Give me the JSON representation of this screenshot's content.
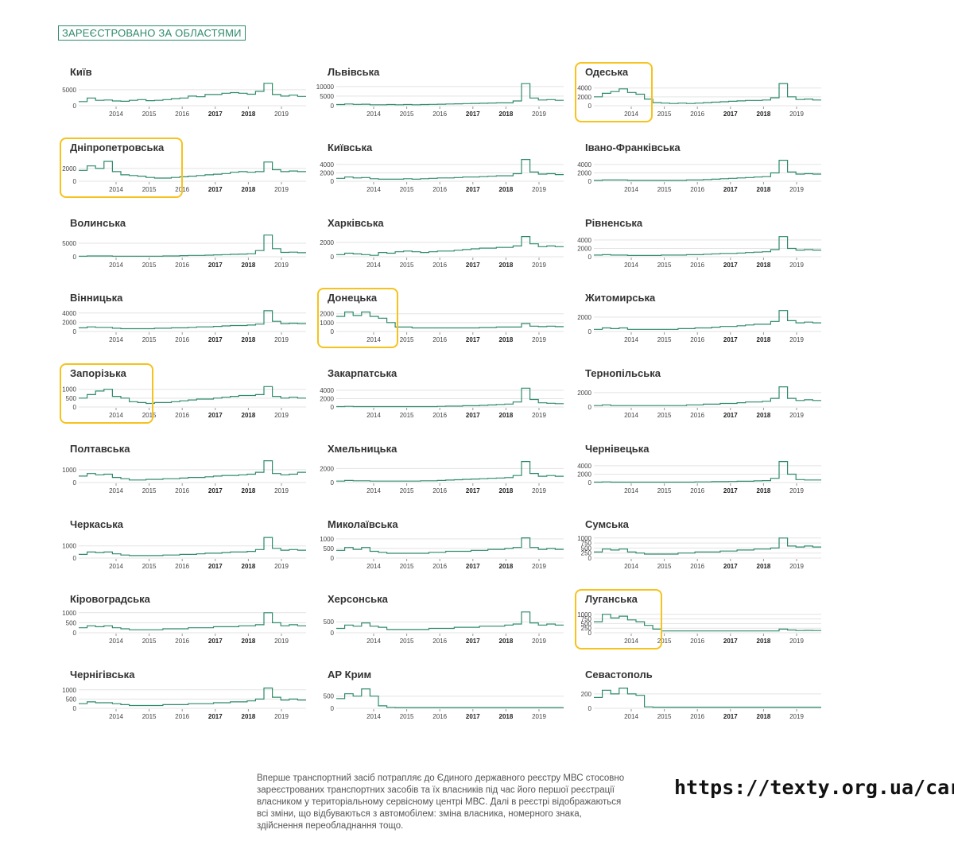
{
  "header": {
    "title": "ЗАРЕЄСТРОВАНО ЗА ОБЛАСТЯМИ"
  },
  "note": "Вперше транспортний засіб потрапляє до Єдиного державного реєстру МВС стосовно зареєстрованих транспортних засобів та їх власників під час його першої реєстрації власником у територіальному сервісному центрі МВС. Далі в реєстрі відображаються всі зміни, що відбуваються з автомобілем: зміна власника, номерного знака, здійснення переобладнання тощо.",
  "url": "https://texty.org.ua/cars/",
  "colors": {
    "line": "#2e8b6a",
    "accent": "#2e8b6a",
    "highlight": "#f6c21c",
    "grid": "#e3e3e3"
  },
  "chart_data": {
    "type": "line",
    "title": "ЗАРЕЄСТРОВАНО ЗА ОБЛАСТЯМИ",
    "x_ticks": [
      "2014",
      "2015",
      "2016",
      "2017",
      "2018",
      "2019"
    ],
    "x_ticks_bold": [
      "2017",
      "2018"
    ],
    "x_range": [
      "2013-01",
      "2019-12"
    ],
    "charts": [
      {
        "name": "Київ",
        "yticks": [
          0,
          5000
        ],
        "ymax": 7200,
        "highlight": false,
        "v": [
          1300,
          2400,
          1700,
          1800,
          1500,
          1400,
          1700,
          1900,
          1600,
          1700,
          1900,
          2200,
          2400,
          3000,
          2800,
          3500,
          3500,
          3900,
          4100,
          3900,
          3600,
          4500,
          7000,
          3500,
          3000,
          3300,
          2900
        ]
      },
      {
        "name": "Львівська",
        "yticks": [
          0,
          5000,
          10000
        ],
        "ymax": 12000,
        "highlight": false,
        "v": [
          600,
          900,
          700,
          800,
          500,
          500,
          600,
          500,
          600,
          500,
          600,
          700,
          800,
          900,
          1000,
          1100,
          1200,
          1300,
          1400,
          1500,
          1500,
          2500,
          11500,
          4000,
          3000,
          3200,
          2800
        ]
      },
      {
        "name": "Одеська",
        "yticks": [
          0,
          2000,
          4000
        ],
        "ymax": 5200,
        "highlight": true,
        "v": [
          2000,
          2800,
          3200,
          3800,
          3000,
          2600,
          1500,
          700,
          600,
          500,
          600,
          500,
          600,
          700,
          800,
          900,
          1000,
          1100,
          1200,
          1200,
          1300,
          1800,
          5000,
          2000,
          1400,
          1500,
          1300
        ]
      },
      {
        "name": "Дніпропетровська",
        "yticks": [
          0,
          2000
        ],
        "ymax": 3600,
        "highlight": true,
        "v": [
          1700,
          2400,
          2000,
          3100,
          1500,
          1000,
          900,
          800,
          600,
          500,
          500,
          600,
          700,
          800,
          900,
          1000,
          1100,
          1200,
          1400,
          1500,
          1400,
          1500,
          3000,
          1800,
          1500,
          1600,
          1500
        ]
      },
      {
        "name": "Київська",
        "yticks": [
          0,
          2000,
          4000
        ],
        "ymax": 5500,
        "highlight": false,
        "v": [
          700,
          1000,
          800,
          900,
          600,
          500,
          500,
          500,
          600,
          500,
          600,
          700,
          800,
          800,
          900,
          1000,
          1000,
          1100,
          1200,
          1300,
          1300,
          1800,
          5200,
          2200,
          1700,
          1800,
          1600
        ]
      },
      {
        "name": "Івано-Франківська",
        "yticks": [
          0,
          2000,
          4000
        ],
        "ymax": 5500,
        "highlight": false,
        "v": [
          200,
          300,
          300,
          300,
          200,
          200,
          200,
          200,
          200,
          200,
          200,
          300,
          300,
          400,
          500,
          600,
          700,
          800,
          900,
          1000,
          1100,
          2000,
          5000,
          2200,
          1700,
          1800,
          1700
        ]
      },
      {
        "name": "Волинська",
        "yticks": [
          0,
          5000
        ],
        "ymax": 8500,
        "highlight": false,
        "v": [
          200,
          300,
          300,
          300,
          200,
          200,
          200,
          200,
          200,
          200,
          300,
          300,
          400,
          500,
          500,
          600,
          700,
          800,
          900,
          1000,
          1100,
          2300,
          8000,
          3000,
          1600,
          1700,
          1500
        ]
      },
      {
        "name": "Харківська",
        "yticks": [
          0,
          2000
        ],
        "ymax": 3200,
        "highlight": false,
        "v": [
          300,
          500,
          400,
          300,
          200,
          600,
          500,
          700,
          800,
          700,
          600,
          700,
          800,
          800,
          900,
          1000,
          1100,
          1200,
          1200,
          1300,
          1300,
          1500,
          2800,
          1800,
          1400,
          1500,
          1400
        ]
      },
      {
        "name": "Рівненська",
        "yticks": [
          0,
          2000,
          4000
        ],
        "ymax": 5500,
        "highlight": false,
        "v": [
          400,
          500,
          400,
          400,
          300,
          300,
          300,
          300,
          400,
          400,
          400,
          500,
          500,
          600,
          700,
          800,
          800,
          900,
          1000,
          1100,
          1200,
          1700,
          4800,
          2000,
          1600,
          1700,
          1600
        ]
      },
      {
        "name": "Вінницька",
        "yticks": [
          0,
          2000,
          4000
        ],
        "ymax": 5000,
        "highlight": false,
        "v": [
          800,
          1000,
          900,
          900,
          700,
          600,
          600,
          600,
          600,
          700,
          700,
          800,
          800,
          900,
          1000,
          1000,
          1100,
          1200,
          1300,
          1300,
          1400,
          1600,
          4500,
          2200,
          1700,
          1800,
          1700
        ]
      },
      {
        "name": "Донецька",
        "yticks": [
          0,
          1000,
          2000
        ],
        "ymax": 2600,
        "highlight": true,
        "v": [
          1700,
          2200,
          1800,
          2200,
          1700,
          1500,
          1000,
          500,
          500,
          400,
          400,
          400,
          400,
          400,
          400,
          400,
          400,
          450,
          450,
          500,
          500,
          500,
          900,
          600,
          550,
          600,
          550
        ]
      },
      {
        "name": "Житомирська",
        "yticks": [
          0,
          2000
        ],
        "ymax": 3200,
        "highlight": false,
        "v": [
          300,
          500,
          400,
          500,
          300,
          300,
          300,
          300,
          300,
          300,
          400,
          400,
          500,
          500,
          600,
          700,
          700,
          800,
          900,
          1000,
          1000,
          1400,
          2900,
          1500,
          1200,
          1300,
          1200
        ]
      },
      {
        "name": "Запорізька",
        "yticks": [
          0,
          500,
          1000
        ],
        "ymax": 1300,
        "highlight": true,
        "v": [
          500,
          700,
          900,
          1000,
          600,
          500,
          300,
          250,
          200,
          250,
          250,
          300,
          350,
          400,
          450,
          450,
          500,
          550,
          600,
          650,
          650,
          700,
          1150,
          600,
          500,
          550,
          500
        ]
      },
      {
        "name": "Закарпатська",
        "yticks": [
          0,
          2000,
          4000
        ],
        "ymax": 5500,
        "highlight": false,
        "v": [
          100,
          150,
          100,
          100,
          100,
          100,
          100,
          100,
          100,
          100,
          100,
          100,
          150,
          200,
          200,
          300,
          300,
          400,
          500,
          600,
          700,
          1200,
          4500,
          1800,
          1000,
          900,
          800
        ]
      },
      {
        "name": "Тернопільська",
        "yticks": [
          0,
          2000
        ],
        "ymax": 3200,
        "highlight": false,
        "v": [
          200,
          300,
          200,
          200,
          200,
          200,
          200,
          200,
          200,
          200,
          200,
          300,
          300,
          400,
          400,
          500,
          500,
          600,
          700,
          700,
          800,
          1200,
          2800,
          1200,
          900,
          1000,
          900
        ]
      },
      {
        "name": "Полтавська",
        "yticks": [
          0,
          1000
        ],
        "ymax": 1800,
        "highlight": false,
        "v": [
          500,
          700,
          600,
          650,
          400,
          300,
          200,
          200,
          250,
          250,
          300,
          300,
          350,
          400,
          400,
          450,
          500,
          550,
          550,
          600,
          650,
          800,
          1700,
          700,
          600,
          650,
          800
        ]
      },
      {
        "name": "Хмельницька",
        "yticks": [
          0,
          2000
        ],
        "ymax": 3300,
        "highlight": false,
        "v": [
          200,
          300,
          250,
          250,
          200,
          200,
          200,
          200,
          200,
          200,
          250,
          250,
          300,
          350,
          400,
          450,
          500,
          550,
          600,
          650,
          700,
          1000,
          3000,
          1300,
          900,
          1000,
          900
        ]
      },
      {
        "name": "Чернівецька",
        "yticks": [
          0,
          2000,
          4000
        ],
        "ymax": 5500,
        "highlight": false,
        "v": [
          100,
          150,
          100,
          100,
          100,
          100,
          100,
          100,
          100,
          100,
          100,
          100,
          150,
          150,
          200,
          200,
          250,
          300,
          300,
          400,
          450,
          1000,
          5000,
          2000,
          700,
          600,
          600
        ]
      },
      {
        "name": "Черкаська",
        "yticks": [
          0,
          1000
        ],
        "ymax": 1900,
        "highlight": false,
        "v": [
          300,
          500,
          450,
          500,
          350,
          250,
          200,
          200,
          200,
          200,
          250,
          250,
          300,
          300,
          350,
          400,
          400,
          450,
          500,
          500,
          550,
          700,
          1700,
          800,
          650,
          700,
          650
        ]
      },
      {
        "name": "Миколаївська",
        "yticks": [
          0,
          500,
          1000
        ],
        "ymax": 1200,
        "highlight": false,
        "v": [
          400,
          550,
          450,
          550,
          350,
          300,
          250,
          250,
          250,
          250,
          250,
          300,
          300,
          350,
          350,
          350,
          400,
          400,
          450,
          450,
          500,
          550,
          1050,
          550,
          450,
          500,
          450
        ]
      },
      {
        "name": "Сумська",
        "yticks": [
          0,
          250,
          500,
          750,
          1000
        ],
        "ymax": 1150,
        "highlight": false,
        "v": [
          300,
          450,
          400,
          450,
          300,
          250,
          200,
          200,
          200,
          200,
          250,
          250,
          300,
          300,
          300,
          350,
          350,
          400,
          400,
          450,
          450,
          500,
          1000,
          600,
          550,
          600,
          550
        ]
      },
      {
        "name": "Кіровоградська",
        "yticks": [
          0,
          500,
          1000
        ],
        "ymax": 1150,
        "highlight": false,
        "v": [
          250,
          350,
          300,
          350,
          250,
          200,
          150,
          150,
          150,
          150,
          200,
          200,
          200,
          250,
          250,
          250,
          300,
          300,
          300,
          350,
          350,
          400,
          1000,
          500,
          350,
          400,
          350
        ]
      },
      {
        "name": "Херсонська",
        "yticks": [
          0,
          500
        ],
        "ymax": 1050,
        "highlight": false,
        "v": [
          200,
          350,
          300,
          450,
          300,
          250,
          150,
          150,
          150,
          150,
          150,
          200,
          200,
          200,
          250,
          250,
          250,
          300,
          300,
          300,
          350,
          400,
          950,
          450,
          350,
          400,
          350
        ]
      },
      {
        "name": "Луганська",
        "yticks": [
          0,
          250,
          500,
          750,
          1000
        ],
        "ymax": 1250,
        "highlight": true,
        "v": [
          600,
          1000,
          800,
          900,
          700,
          600,
          400,
          200,
          100,
          100,
          100,
          100,
          100,
          100,
          100,
          100,
          100,
          100,
          100,
          100,
          100,
          100,
          200,
          150,
          120,
          130,
          120
        ]
      },
      {
        "name": "Чернігівська",
        "yticks": [
          0,
          500,
          1000
        ],
        "ymax": 1250,
        "highlight": false,
        "v": [
          250,
          350,
          300,
          300,
          250,
          200,
          150,
          150,
          150,
          150,
          200,
          200,
          200,
          250,
          250,
          250,
          300,
          300,
          350,
          350,
          400,
          500,
          1100,
          600,
          450,
          500,
          450
        ]
      },
      {
        "name": "АР Крим",
        "yticks": [
          0,
          500
        ],
        "ymax": 950,
        "highlight": false,
        "v": [
          400,
          600,
          500,
          800,
          500,
          100,
          40,
          30,
          30,
          30,
          30,
          30,
          30,
          30,
          30,
          30,
          30,
          30,
          30,
          30,
          30,
          30,
          30,
          30,
          30,
          30,
          30
        ]
      },
      {
        "name": "Севастополь",
        "yticks": [
          0,
          200
        ],
        "ymax": 320,
        "highlight": false,
        "v": [
          150,
          250,
          200,
          280,
          200,
          180,
          20,
          15,
          15,
          15,
          15,
          15,
          15,
          15,
          15,
          15,
          15,
          15,
          15,
          15,
          15,
          15,
          15,
          15,
          15,
          15,
          15
        ]
      }
    ]
  }
}
